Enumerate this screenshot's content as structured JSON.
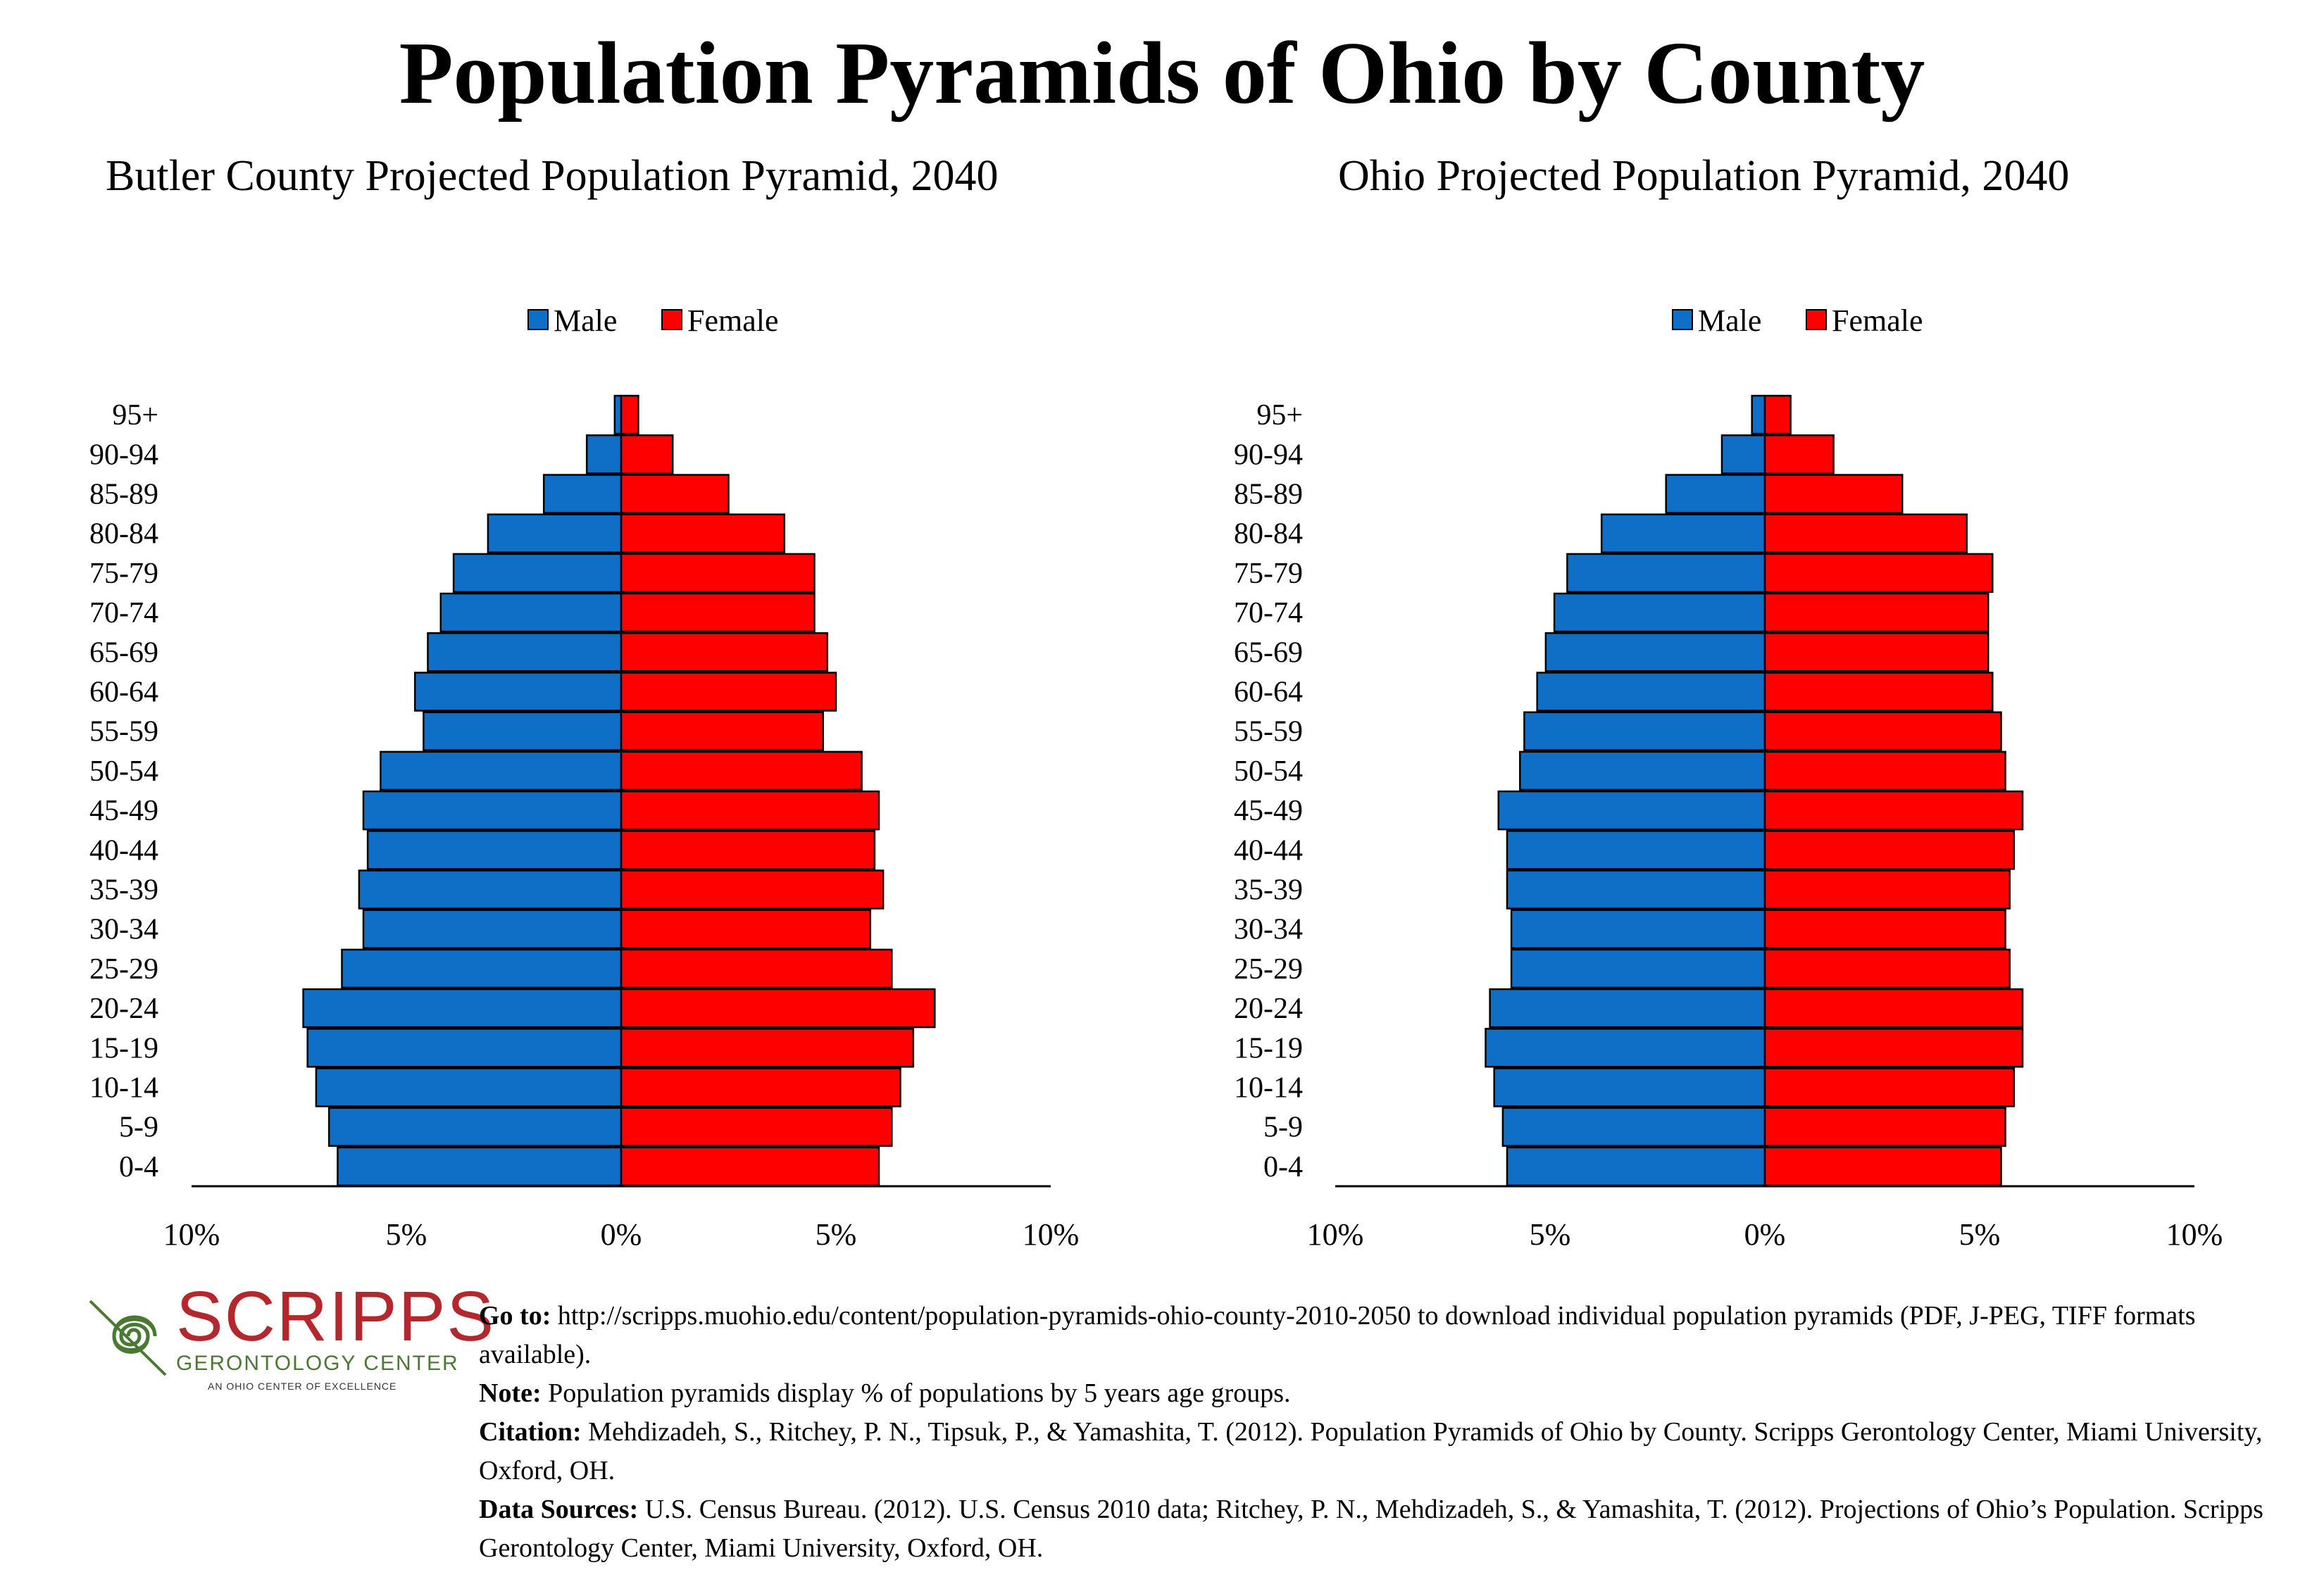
{
  "title": "Population Pyramids of Ohio by County",
  "colors": {
    "male": "#0f6fc6",
    "female": "#ff0000"
  },
  "legend": {
    "male": "Male",
    "female": "Female"
  },
  "x_tick_labels": [
    "10%",
    "5%",
    "0%",
    "5%",
    "10%"
  ],
  "chart_data": [
    {
      "type": "bar",
      "orientation": "horizontal-pyramid",
      "title": "Butler County Projected Population Pyramid, 2040",
      "xlim": [
        -10,
        10
      ],
      "legend_position": "top-center",
      "categories": [
        "0-4",
        "5-9",
        "10-14",
        "15-19",
        "20-24",
        "25-29",
        "30-34",
        "35-39",
        "40-44",
        "45-49",
        "50-54",
        "55-59",
        "60-64",
        "65-69",
        "70-74",
        "75-79",
        "80-84",
        "85-89",
        "90-94",
        "95+"
      ],
      "series": [
        {
          "name": "Male",
          "values": [
            6.6,
            6.8,
            7.1,
            7.3,
            7.4,
            6.5,
            6.0,
            6.1,
            5.9,
            6.0,
            5.6,
            4.6,
            4.8,
            4.5,
            4.2,
            3.9,
            3.1,
            1.8,
            0.8,
            0.15
          ]
        },
        {
          "name": "Female",
          "values": [
            6.0,
            6.3,
            6.5,
            6.8,
            7.3,
            6.3,
            5.8,
            6.1,
            5.9,
            6.0,
            5.6,
            4.7,
            5.0,
            4.8,
            4.5,
            4.5,
            3.8,
            2.5,
            1.2,
            0.4
          ]
        }
      ]
    },
    {
      "type": "bar",
      "orientation": "horizontal-pyramid",
      "title": "Ohio Projected Population Pyramid, 2040",
      "xlim": [
        -10,
        10
      ],
      "legend_position": "top-center",
      "categories": [
        "0-4",
        "5-9",
        "10-14",
        "15-19",
        "20-24",
        "25-29",
        "30-34",
        "35-39",
        "40-44",
        "45-49",
        "50-54",
        "55-59",
        "60-64",
        "65-69",
        "70-74",
        "75-79",
        "80-84",
        "85-89",
        "90-94",
        "95+"
      ],
      "series": [
        {
          "name": "Male",
          "values": [
            6.0,
            6.1,
            6.3,
            6.5,
            6.4,
            5.9,
            5.9,
            6.0,
            6.0,
            6.2,
            5.7,
            5.6,
            5.3,
            5.1,
            4.9,
            4.6,
            3.8,
            2.3,
            1.0,
            0.3
          ]
        },
        {
          "name": "Female",
          "values": [
            5.5,
            5.6,
            5.8,
            6.0,
            6.0,
            5.7,
            5.6,
            5.7,
            5.8,
            6.0,
            5.6,
            5.5,
            5.3,
            5.2,
            5.2,
            5.3,
            4.7,
            3.2,
            1.6,
            0.6
          ]
        }
      ]
    }
  ],
  "notes": [
    {
      "label": "Go to:",
      "text": " http://scripps.muohio.edu/content/population-pyramids-ohio-county-2010-2050 to download individual population pyramids (PDF, J-PEG, TIFF formats available)."
    },
    {
      "label": "Note:",
      "text": " Population pyramids display % of populations by 5 years age groups."
    },
    {
      "label": "Citation:",
      "text": " Mehdizadeh, S., Ritchey, P. N., Tipsuk, P., & Yamashita, T. (2012). Population Pyramids of Ohio by County. Scripps Gerontology Center, Miami University, Oxford, OH."
    },
    {
      "label": "Data Sources:",
      "text": " U.S. Census Bureau. (2012). U.S. Census 2010 data; Ritchey, P. N., Mehdizadeh, S., & Yamashita, T. (2012). Projections of Ohio’s Population. Scripps Gerontology Center, Miami University, Oxford, OH."
    }
  ],
  "logo": {
    "name": "SCRIPPS",
    "subtitle": "GERONTOLOGY CENTER",
    "tagline": "AN OHIO CENTER OF EXCELLENCE"
  }
}
